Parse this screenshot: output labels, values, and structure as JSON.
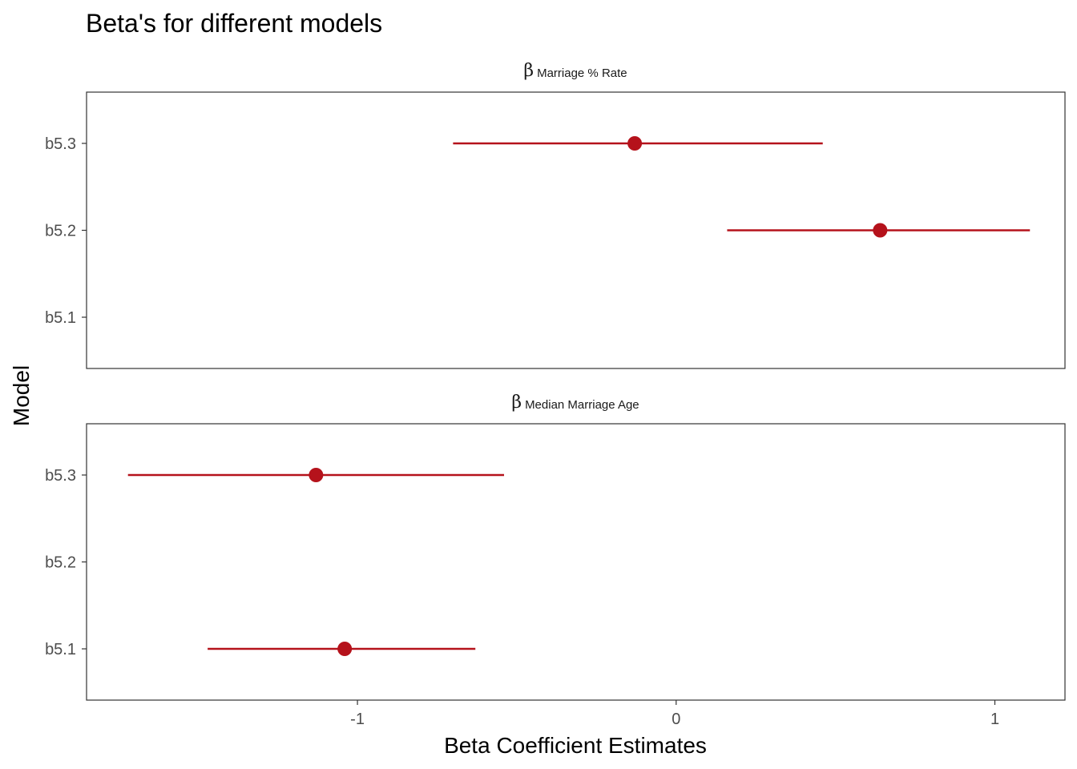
{
  "chart_data": {
    "type": "scatter",
    "title": "Beta's for different models",
    "xlabel": "Beta Coefficient Estimates",
    "ylabel": "Model",
    "xlim": [
      -1.85,
      1.22
    ],
    "xticks": [
      -1,
      0,
      1
    ],
    "xtick_labels": [
      "-1",
      "0",
      "1"
    ],
    "categories": [
      "b5.3",
      "b5.2",
      "b5.1"
    ],
    "colors": {
      "point": "#B5121B",
      "frame": "#333333",
      "text": "#000000",
      "tick_text": "#4D4D4D"
    },
    "grid": false,
    "legend": "none",
    "panels": [
      {
        "symbol": "β",
        "label": "Marriage % Rate",
        "points": [
          {
            "model": "b5.3",
            "estimate": -0.13,
            "lower": -0.7,
            "upper": 0.46
          },
          {
            "model": "b5.2",
            "estimate": 0.64,
            "lower": 0.16,
            "upper": 1.11
          }
        ]
      },
      {
        "symbol": "β",
        "label": "Median Marriage Age",
        "points": [
          {
            "model": "b5.3",
            "estimate": -1.13,
            "lower": -1.72,
            "upper": -0.54
          },
          {
            "model": "b5.1",
            "estimate": -1.04,
            "lower": -1.47,
            "upper": -0.63
          }
        ]
      }
    ]
  }
}
